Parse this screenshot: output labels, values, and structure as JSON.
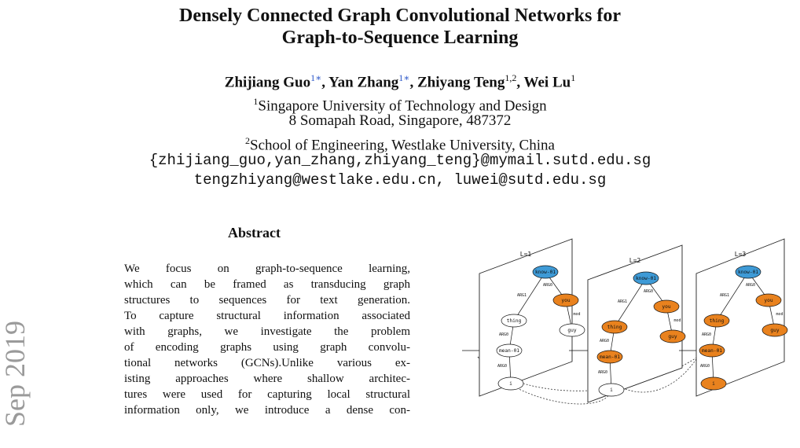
{
  "paper": {
    "title_line1": "Densely Connected Graph Convolutional Networks for",
    "title_line2": "Graph-to-Sequence Learning",
    "authors": [
      {
        "name": "Zhijiang Guo",
        "sup": "1∗"
      },
      {
        "name": "Yan Zhang",
        "sup": "1∗"
      },
      {
        "name": "Zhiyang Teng",
        "sup": "1,2"
      },
      {
        "name": "Wei Lu",
        "sup": "1"
      }
    ],
    "affiliation1": "Singapore University of Technology and Design",
    "affiliation1_sup": "1",
    "address1": "8 Somapah Road, Singapore, 487372",
    "affiliation2": "School of Engineering, Westlake University, China",
    "affiliation2_sup": "2",
    "email_line1": "{zhijiang_guo,yan_zhang,zhiyang_teng}@mymail.sutd.edu.sg",
    "email_line2": "tengzhiyang@westlake.edu.cn, luwei@sutd.edu.sg",
    "side_stamp": "Sep 2019",
    "abstract_heading": "Abstract",
    "abstract_lines": [
      "We focus on graph-to-sequence learning,",
      "which can be framed as transducing graph",
      "structures to sequences for text generation.",
      "To capture structural information associated",
      "with graphs, we investigate the problem",
      "of encoding graphs using graph convolu-",
      "tional networks (GCNs).Unlike various ex-",
      "isting approaches where shallow architec-",
      "tures were used for capturing local structural",
      "information only, we introduce a dense con-"
    ]
  },
  "figure": {
    "colors": {
      "root": "#3e9ad6",
      "active": "#e9821e",
      "inactive": "#ffffff"
    },
    "layers": [
      {
        "label": "L=1",
        "active": [
          "know-01",
          "you"
        ]
      },
      {
        "label": "L=2",
        "active": [
          "know-01",
          "you",
          "thing",
          "mean-01",
          "guy"
        ]
      },
      {
        "label": "L=3",
        "active": [
          "know-01",
          "you",
          "thing",
          "mean-01",
          "guy",
          "i"
        ]
      }
    ],
    "nodes": [
      "know-01",
      "you",
      "thing",
      "guy",
      "mean-01",
      "i"
    ],
    "edge_labels": {
      "arg1": "ARG1",
      "arg0": "ARG0",
      "mod": "mod"
    }
  }
}
